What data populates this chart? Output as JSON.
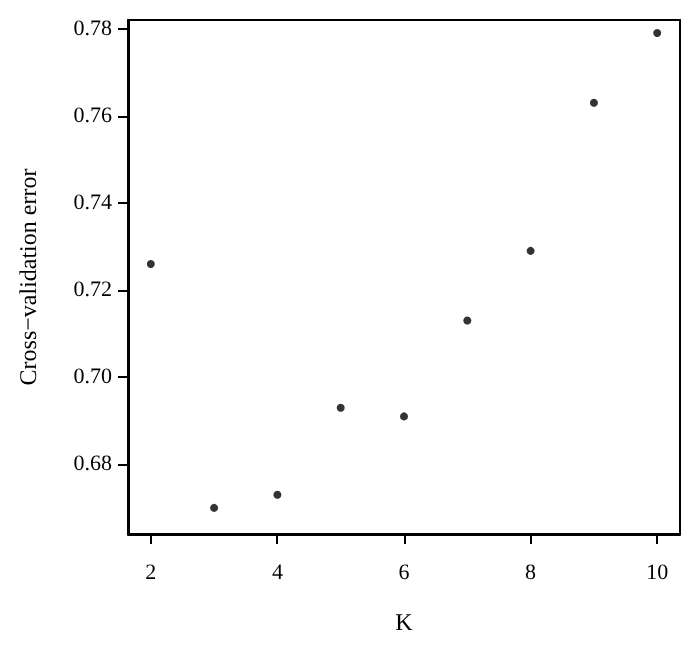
{
  "chart_data": {
    "type": "scatter",
    "xlabel": "K",
    "ylabel": "Cross−validation error",
    "x": [
      2,
      3,
      4,
      5,
      6,
      7,
      8,
      9,
      10
    ],
    "series": [
      {
        "color": "#000000",
        "values": [
          0.726,
          0.67,
          0.673,
          0.693,
          0.691,
          0.713,
          0.729,
          0.763,
          0.779
        ]
      }
    ],
    "xlim": [
      1.64,
      10.36
    ],
    "xticks": [
      2,
      4,
      6,
      8,
      10
    ],
    "ylim": [
      0.664,
      0.782
    ],
    "yticks": [
      0.68,
      {
        "value": 0.7,
        "label": "0.70"
      },
      0.72,
      0.74,
      0.76,
      0.78
    ],
    "grid": false,
    "marker": "circle"
  }
}
